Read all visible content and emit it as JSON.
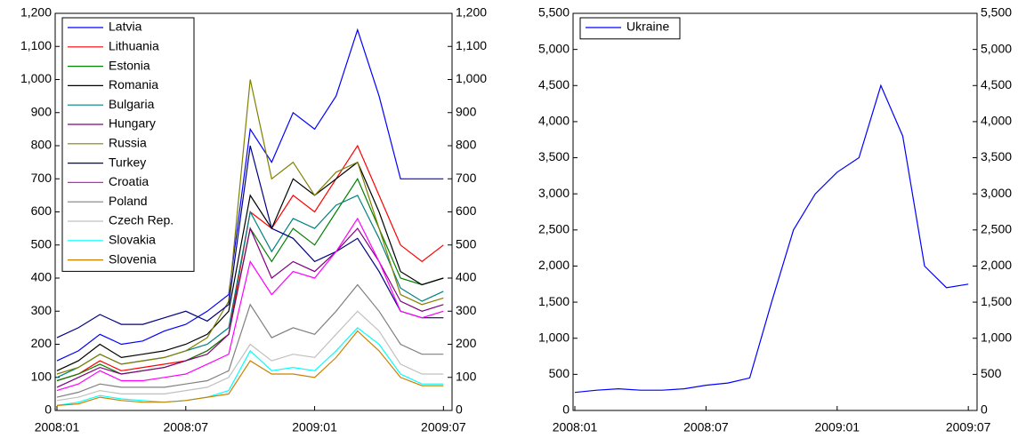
{
  "chart_data": [
    {
      "type": "line",
      "legend": "upper left",
      "mirror_y_axis": true,
      "x": [
        "2008:01",
        "2008:02",
        "2008:03",
        "2008:04",
        "2008:05",
        "2008:06",
        "2008:07",
        "2008:08",
        "2008:09",
        "2008:10",
        "2008:11",
        "2008:12",
        "2009:01",
        "2009:02",
        "2009:03",
        "2009:04",
        "2009:05",
        "2009:06",
        "2009:07"
      ],
      "xticks": [
        "2008:01",
        "2008:07",
        "2009:01",
        "2009:07"
      ],
      "ylim": [
        0,
        1200
      ],
      "yticks": [
        0,
        100,
        200,
        300,
        400,
        500,
        600,
        700,
        800,
        900,
        {
          "value": 1000,
          "label": "1,000"
        },
        {
          "value": 1100,
          "label": "1,100"
        },
        {
          "value": 1200,
          "label": "1,200"
        }
      ],
      "series": [
        {
          "name": "Latvia",
          "color": "#0000ff",
          "values": [
            150,
            180,
            230,
            200,
            210,
            240,
            260,
            300,
            350,
            850,
            750,
            900,
            850,
            950,
            1150,
            950,
            700,
            700,
            700
          ]
        },
        {
          "name": "Lithuania",
          "color": "#ff0000",
          "values": [
            90,
            110,
            150,
            120,
            130,
            140,
            150,
            180,
            230,
            600,
            550,
            650,
            600,
            700,
            800,
            650,
            500,
            450,
            500
          ]
        },
        {
          "name": "Estonia",
          "color": "#008000",
          "values": [
            90,
            110,
            140,
            110,
            120,
            130,
            150,
            180,
            230,
            550,
            450,
            550,
            500,
            600,
            700,
            550,
            400,
            380,
            400
          ]
        },
        {
          "name": "Romania",
          "color": "#000000",
          "values": [
            120,
            150,
            200,
            160,
            170,
            180,
            200,
            230,
            300,
            650,
            550,
            700,
            650,
            700,
            750,
            600,
            420,
            380,
            400
          ]
        },
        {
          "name": "Bulgaria",
          "color": "#008080",
          "values": [
            100,
            130,
            170,
            140,
            150,
            160,
            180,
            200,
            250,
            600,
            480,
            580,
            550,
            620,
            650,
            520,
            370,
            330,
            360
          ]
        },
        {
          "name": "Hungary",
          "color": "#800080",
          "values": [
            70,
            100,
            130,
            110,
            120,
            130,
            150,
            170,
            230,
            550,
            400,
            450,
            420,
            480,
            550,
            450,
            330,
            300,
            320
          ]
        },
        {
          "name": "Russia",
          "color": "#808000",
          "values": [
            110,
            130,
            170,
            140,
            150,
            160,
            180,
            220,
            330,
            1000,
            700,
            750,
            650,
            720,
            750,
            550,
            350,
            320,
            340
          ]
        },
        {
          "name": "Turkey",
          "color": "#000080",
          "values": [
            220,
            250,
            290,
            260,
            260,
            280,
            300,
            270,
            320,
            800,
            550,
            520,
            450,
            480,
            520,
            420,
            300,
            280,
            280
          ]
        },
        {
          "name": "Croatia",
          "color": "#ff00ff",
          "values": [
            60,
            80,
            120,
            90,
            90,
            100,
            110,
            140,
            170,
            450,
            350,
            420,
            400,
            480,
            580,
            450,
            300,
            280,
            300
          ]
        },
        {
          "name": "Poland",
          "color": "#808080",
          "values": [
            40,
            55,
            80,
            70,
            70,
            70,
            80,
            90,
            120,
            320,
            220,
            250,
            230,
            300,
            380,
            300,
            200,
            170,
            170
          ]
        },
        {
          "name": "Czech Rep.",
          "color": "#c0c0c0",
          "values": [
            30,
            40,
            60,
            50,
            50,
            50,
            60,
            70,
            100,
            200,
            150,
            170,
            160,
            230,
            300,
            240,
            140,
            110,
            110
          ]
        },
        {
          "name": "Slovakia",
          "color": "#00ffff",
          "values": [
            15,
            25,
            45,
            35,
            30,
            25,
            30,
            40,
            60,
            180,
            120,
            130,
            120,
            180,
            250,
            200,
            110,
            80,
            80
          ]
        },
        {
          "name": "Slovenia",
          "color": "#cc8000",
          "values": [
            15,
            20,
            40,
            30,
            25,
            25,
            30,
            40,
            50,
            150,
            110,
            110,
            100,
            160,
            240,
            180,
            100,
            75,
            75
          ]
        }
      ]
    },
    {
      "type": "line",
      "legend": "upper left",
      "mirror_y_axis": true,
      "x": [
        "2008:01",
        "2008:02",
        "2008:03",
        "2008:04",
        "2008:05",
        "2008:06",
        "2008:07",
        "2008:08",
        "2008:09",
        "2008:10",
        "2008:11",
        "2008:12",
        "2009:01",
        "2009:02",
        "2009:03",
        "2009:04",
        "2009:05",
        "2009:06",
        "2009:07"
      ],
      "xticks": [
        "2008:01",
        "2008:07",
        "2009:01",
        "2009:07"
      ],
      "ylim": [
        0,
        5500
      ],
      "yticks": [
        0,
        500,
        {
          "value": 1000,
          "label": "1,000"
        },
        {
          "value": 1500,
          "label": "1,500"
        },
        {
          "value": 2000,
          "label": "2,000"
        },
        {
          "value": 2500,
          "label": "2,500"
        },
        {
          "value": 3000,
          "label": "3,000"
        },
        {
          "value": 3500,
          "label": "3,500"
        },
        {
          "value": 4000,
          "label": "4,000"
        },
        {
          "value": 4500,
          "label": "4,500"
        },
        {
          "value": 5000,
          "label": "5,000"
        },
        {
          "value": 5500,
          "label": "5,500"
        }
      ],
      "series": [
        {
          "name": "Ukraine",
          "color": "#0000ff",
          "values": [
            250,
            280,
            300,
            280,
            280,
            300,
            350,
            380,
            450,
            1500,
            2500,
            3000,
            3300,
            3500,
            4500,
            3800,
            2000,
            1700,
            1750
          ]
        }
      ]
    }
  ]
}
